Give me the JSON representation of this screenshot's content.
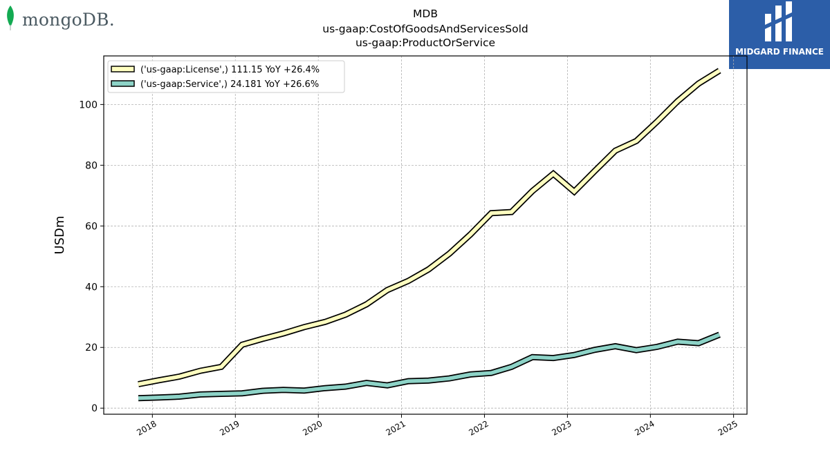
{
  "header": {
    "title_lines": [
      "MDB",
      "us-gaap:CostOfGoodsAndServicesSold",
      "us-gaap:ProductOrService"
    ],
    "logo_left_text": "mongoDB.",
    "logo_right_text": "MIDGARD FINANCE"
  },
  "colors": {
    "license": "#ffffc0",
    "service": "#8dd3c7",
    "outline": "#000000",
    "grid": "#b0b0b0",
    "logo_green": "#13aa52",
    "logo_blue": "#2c5ea8"
  },
  "chart_data": {
    "type": "line",
    "title": "MDB us-gaap:CostOfGoodsAndServicesSold us-gaap:ProductOrService",
    "xlabel": "",
    "ylabel": "USDm",
    "ylim": [
      -2,
      116
    ],
    "xlim": [
      "2017-06-01",
      "2025-03-01"
    ],
    "yticks": [
      0,
      20,
      40,
      60,
      80,
      100
    ],
    "xticks": [
      "2018",
      "2019",
      "2020",
      "2021",
      "2022",
      "2023",
      "2024",
      "2025"
    ],
    "grid": true,
    "legend_position": "top-left",
    "x": [
      "2017-10-31",
      "2018-01-31",
      "2018-04-30",
      "2018-07-31",
      "2018-10-31",
      "2019-01-31",
      "2019-04-30",
      "2019-07-31",
      "2019-10-31",
      "2020-01-31",
      "2020-04-30",
      "2020-07-31",
      "2020-10-31",
      "2021-01-31",
      "2021-04-30",
      "2021-07-31",
      "2021-10-31",
      "2022-01-31",
      "2022-04-30",
      "2022-07-31",
      "2022-10-31",
      "2023-01-31",
      "2023-04-30",
      "2023-07-31",
      "2023-10-31",
      "2024-01-31",
      "2024-04-30",
      "2024-07-31",
      "2024-10-31"
    ],
    "series": [
      {
        "name": "('us-gaap:License',) 111.15 YoY +26.4%",
        "values": [
          7.9,
          9.2,
          10.4,
          12.3,
          13.6,
          20.9,
          22.8,
          24.6,
          26.7,
          28.4,
          30.8,
          34.2,
          38.9,
          41.9,
          45.7,
          50.9,
          57.2,
          64.2,
          64.6,
          71.5,
          77.2,
          71.3,
          78.0,
          84.8,
          88.0,
          94.4,
          101.1,
          106.9,
          111.15
        ]
      },
      {
        "name": "('us-gaap:Service',) 24.181 YoY +26.6%",
        "values": [
          3.3,
          3.5,
          3.8,
          4.5,
          4.7,
          4.9,
          5.7,
          6.0,
          5.8,
          6.6,
          7.1,
          8.3,
          7.5,
          8.9,
          9.1,
          9.8,
          11.1,
          11.6,
          13.6,
          16.8,
          16.5,
          17.5,
          19.2,
          20.4,
          19.1,
          20.2,
          21.9,
          21.4,
          24.181
        ]
      }
    ]
  }
}
